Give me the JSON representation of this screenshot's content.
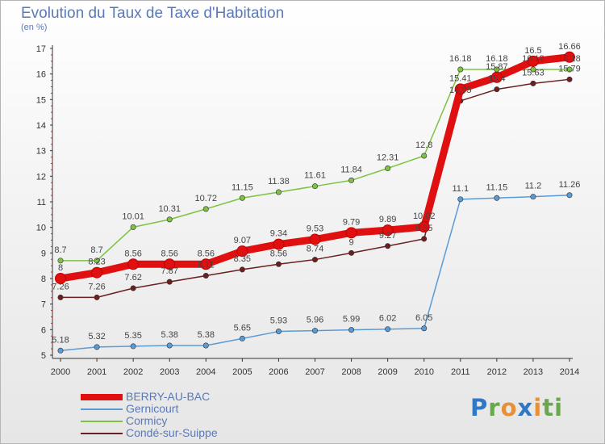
{
  "title": "Evolution du Taux de Taxe d'Habitation",
  "unit_label": "(en %)",
  "brand": {
    "letters": [
      "P",
      "r",
      "o",
      "x",
      "i",
      "t",
      "i"
    ],
    "colors": [
      "#2f78c6",
      "#6aa84f",
      "#e69138",
      "#2f78c6",
      "#e69138",
      "#6aa84f",
      "#6aa84f"
    ]
  },
  "chart_data": {
    "type": "line",
    "x": [
      "2000",
      "2001",
      "2002",
      "2003",
      "2004",
      "2005",
      "2006",
      "2007",
      "2008",
      "2009",
      "2010",
      "2011",
      "2012",
      "2013",
      "2014"
    ],
    "ylim": [
      5,
      17
    ],
    "yticks": [
      "5",
      "6",
      "7",
      "8",
      "9",
      "10",
      "11",
      "12",
      "13",
      "14",
      "15",
      "16",
      "17"
    ],
    "grid": false,
    "legend_position": "bottom-left",
    "series": [
      {
        "name": "BERRY-AU-BAC",
        "color": "#e01010",
        "values": [
          8,
          8.23,
          8.56,
          8.56,
          8.56,
          9.07,
          9.34,
          9.53,
          9.79,
          9.89,
          10.02,
          15.41,
          15.87,
          16.5,
          16.66
        ],
        "labels": [
          "8",
          "8.23",
          "8.56",
          "8.56",
          "8.56",
          "9.07",
          "9.34",
          "9.53",
          "9.79",
          "9.89",
          "10.02",
          "15.41",
          "15.87",
          "16.5",
          "16.66"
        ]
      },
      {
        "name": "Gernicourt",
        "color": "#5b9bd5",
        "values": [
          5.18,
          5.32,
          5.35,
          5.38,
          5.38,
          5.65,
          5.93,
          5.96,
          5.99,
          6.02,
          6.05,
          11.1,
          11.15,
          11.2,
          11.26
        ],
        "labels": [
          "5.18",
          "5.32",
          "5.35",
          "5.38",
          "5.38",
          "5.65",
          "5.93",
          "5.96",
          "5.99",
          "6.02",
          "6.05",
          "11.1",
          "11.15",
          "11.2",
          "11.26"
        ]
      },
      {
        "name": "Cormicy",
        "color": "#7dc242",
        "values": [
          8.7,
          8.7,
          10.01,
          10.31,
          10.72,
          11.15,
          11.38,
          11.61,
          11.84,
          12.31,
          12.8,
          16.18,
          16.18,
          16.18,
          16.18
        ],
        "labels": [
          "8.7",
          "8.7",
          "10.01",
          "10.31",
          "10.72",
          "11.15",
          "11.38",
          "11.61",
          "11.84",
          "12.31",
          "12.8",
          "16.18",
          "16.18",
          "16.18",
          "16.18"
        ]
      },
      {
        "name": "Condé-sur-Suippe",
        "color": "#6b1f1f",
        "values": [
          7.26,
          7.26,
          7.62,
          7.87,
          8.11,
          8.35,
          8.56,
          8.74,
          9,
          9.27,
          9.55,
          14.95,
          15.4,
          15.63,
          15.79
        ],
        "labels": [
          "7.26",
          "7.26",
          "7.62",
          "7.87",
          "8.11",
          "8.35",
          "8.56",
          "8.74",
          "9",
          "9.27",
          "9.55",
          "14.95",
          "15.4",
          "15.63",
          "15.79"
        ]
      }
    ]
  }
}
